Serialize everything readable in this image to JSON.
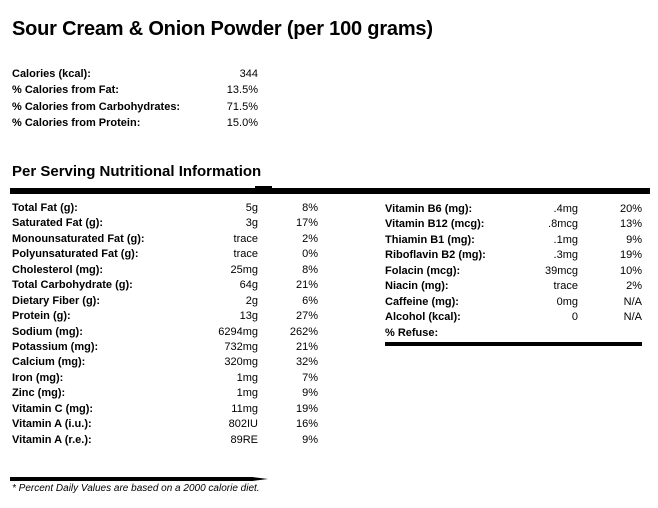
{
  "title": "Sour Cream & Onion Powder (per 100 grams)",
  "summary_rows": [
    {
      "label": "Calories (kcal):",
      "value": "344"
    },
    {
      "label": "% Calories from Fat:",
      "value": "13.5%"
    },
    {
      "label": "% Calories from Carbohydrates:",
      "value": "71.5%"
    },
    {
      "label": "% Calories from Protein:",
      "value": "15.0%"
    }
  ],
  "section_header": "Per Serving Nutritional Information",
  "table": {
    "left_rows": [
      {
        "label": "Total Fat (g):",
        "amount": "5g",
        "dv": "8%"
      },
      {
        "label": "Saturated Fat (g):",
        "amount": "3g",
        "dv": "17%"
      },
      {
        "label": "Monounsaturated Fat (g):",
        "amount": "trace",
        "dv": "2%"
      },
      {
        "label": "Polyunsaturated Fat (g):",
        "amount": "trace",
        "dv": "0%"
      },
      {
        "label": "Cholesterol (mg):",
        "amount": "25mg",
        "dv": "8%"
      },
      {
        "label": "Total Carbohydrate (g):",
        "amount": "64g",
        "dv": "21%"
      },
      {
        "label": "Dietary Fiber (g):",
        "amount": "2g",
        "dv": "6%"
      },
      {
        "label": "Protein (g):",
        "amount": "13g",
        "dv": "27%"
      },
      {
        "label": "Sodium (mg):",
        "amount": "6294mg",
        "dv": "262%"
      },
      {
        "label": "Potassium (mg):",
        "amount": "732mg",
        "dv": "21%"
      },
      {
        "label": "Calcium (mg):",
        "amount": "320mg",
        "dv": "32%"
      },
      {
        "label": "Iron (mg):",
        "amount": "1mg",
        "dv": "7%"
      },
      {
        "label": "Zinc (mg):",
        "amount": "1mg",
        "dv": "9%"
      },
      {
        "label": "Vitamin C (mg):",
        "amount": "11mg",
        "dv": "19%"
      },
      {
        "label": "Vitamin A (i.u.):",
        "amount": "802IU",
        "dv": "16%"
      },
      {
        "label": "Vitamin A (r.e.):",
        "amount": "89RE",
        "dv": "9%"
      }
    ],
    "right_rows": [
      {
        "label": "Vitamin B6 (mg):",
        "amount": ".4mg",
        "dv": "20%"
      },
      {
        "label": "Vitamin B12 (mcg):",
        "amount": ".8mcg",
        "dv": "13%"
      },
      {
        "label": "Thiamin B1 (mg):",
        "amount": ".1mg",
        "dv": "9%"
      },
      {
        "label": "Riboflavin B2 (mg):",
        "amount": ".3mg",
        "dv": "19%"
      },
      {
        "label": "Folacin (mcg):",
        "amount": "39mcg",
        "dv": "10%"
      },
      {
        "label": "Niacin (mg):",
        "amount": "trace",
        "dv": "2%"
      },
      {
        "label": "Caffeine (mg):",
        "amount": "0mg",
        "dv": "N/A"
      },
      {
        "label": "Alcohol (kcal):",
        "amount": "0",
        "dv": "N/A"
      },
      {
        "label": "% Refuse:",
        "amount": "",
        "dv": ""
      }
    ]
  },
  "footnote": "* Percent Daily Values are based on a 2000 calorie diet.",
  "colors": {
    "text": "#000000",
    "background": "#ffffff",
    "rule": "#000000"
  }
}
